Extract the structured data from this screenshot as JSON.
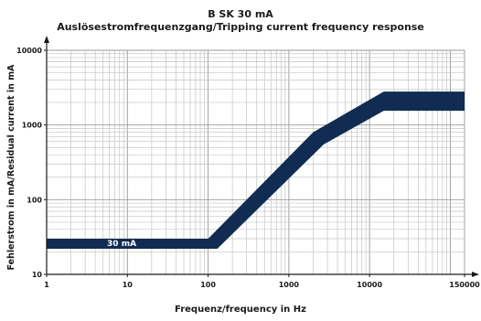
{
  "chart_data": {
    "type": "area",
    "title": "B SK 30 mA",
    "subtitle": "Auslösestromfrequenzgang/Tripping current frequency response",
    "xlabel": "Frequenz/frequency in Hz",
    "ylabel": "Fehlerstrom in mA/Residual current in mA",
    "x_scale": "log",
    "y_scale": "log",
    "xlim": [
      1,
      150000
    ],
    "ylim": [
      10,
      10000
    ],
    "x_ticks": [
      "1",
      "10",
      "100",
      "1000",
      "10000",
      "150000"
    ],
    "y_ticks": [
      "10",
      "100",
      "1000",
      "10000"
    ],
    "grid": true,
    "band_color": "#112c52",
    "series": [
      {
        "name": "",
        "upper": {
          "x": [
            1,
            100,
            2000,
            15000,
            150000
          ],
          "y": [
            30,
            30,
            800,
            2800,
            2800
          ]
        },
        "lower": {
          "x": [
            1,
            130,
            2700,
            15000,
            150000
          ],
          "y": [
            22,
            22,
            550,
            1550,
            1550
          ]
        }
      }
    ],
    "annotations": [
      {
        "text": "30 mA",
        "x": 8.5,
        "y": 26
      }
    ]
  }
}
